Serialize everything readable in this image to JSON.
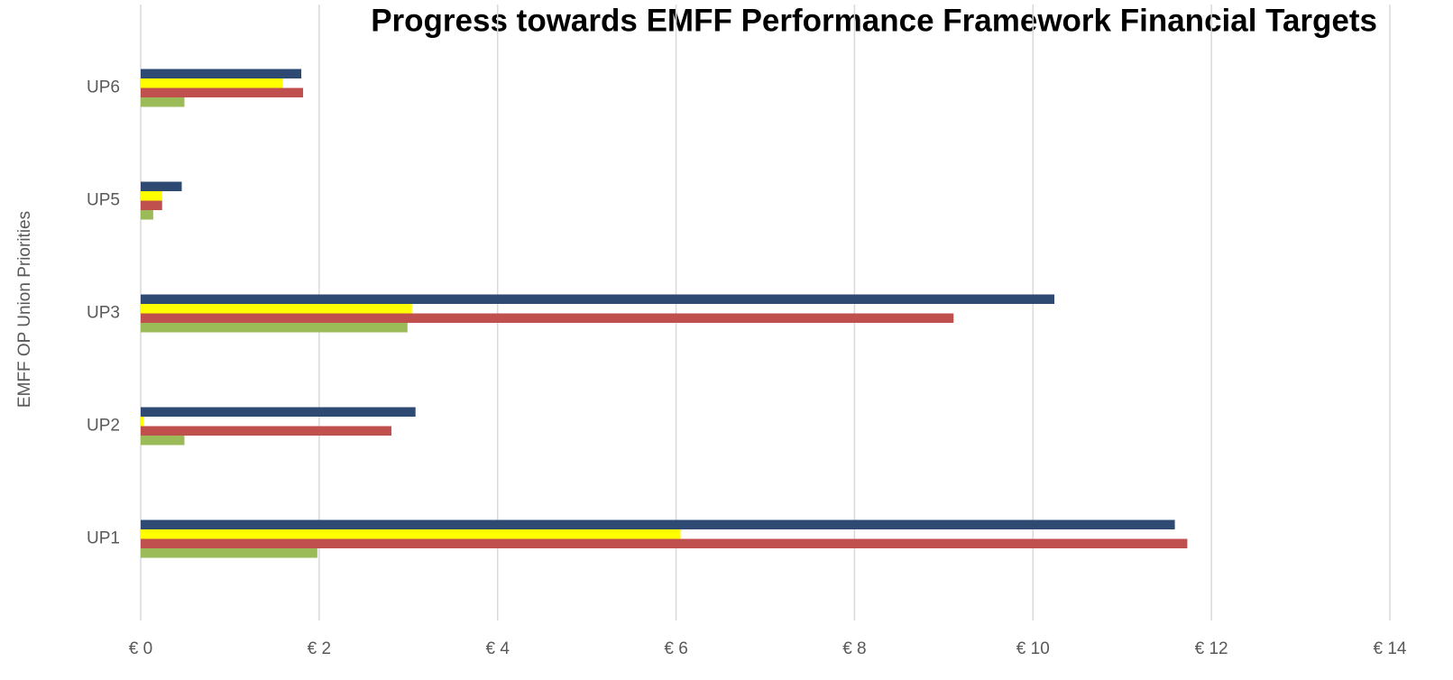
{
  "chart_data": {
    "type": "hbar",
    "title": "Progress towards EMFF Performance Framework Financial Targets",
    "y_label": "EMFF OP Union Priorities",
    "categories": [
      "UP1",
      "UP2",
      "UP3",
      "UP5",
      "UP6"
    ],
    "series": [
      {
        "color": "#2e4a73",
        "values": [
          11.59,
          3.08,
          10.24,
          0.46,
          1.8
        ]
      },
      {
        "color": "#ffff00",
        "values": [
          6.05,
          0.03,
          3.04,
          0.24,
          1.59
        ]
      },
      {
        "color": "#c0504d",
        "values": [
          11.73,
          2.81,
          9.11,
          0.24,
          1.82
        ]
      },
      {
        "color": "#9bbb59",
        "values": [
          1.98,
          0.49,
          2.99,
          0.14,
          0.49
        ]
      }
    ],
    "xlim": [
      0,
      14
    ],
    "xticks": [
      {
        "value": 0,
        "label": "€ 0"
      },
      {
        "value": 2,
        "label": "€ 2"
      },
      {
        "value": 4,
        "label": "€ 4"
      },
      {
        "value": 6,
        "label": "€ 6"
      },
      {
        "value": 8,
        "label": "€ 8"
      },
      {
        "value": 10,
        "label": "€ 10"
      },
      {
        "value": 12,
        "label": "€ 12"
      },
      {
        "value": 14,
        "label": "€ 14"
      }
    ],
    "grid": true
  }
}
